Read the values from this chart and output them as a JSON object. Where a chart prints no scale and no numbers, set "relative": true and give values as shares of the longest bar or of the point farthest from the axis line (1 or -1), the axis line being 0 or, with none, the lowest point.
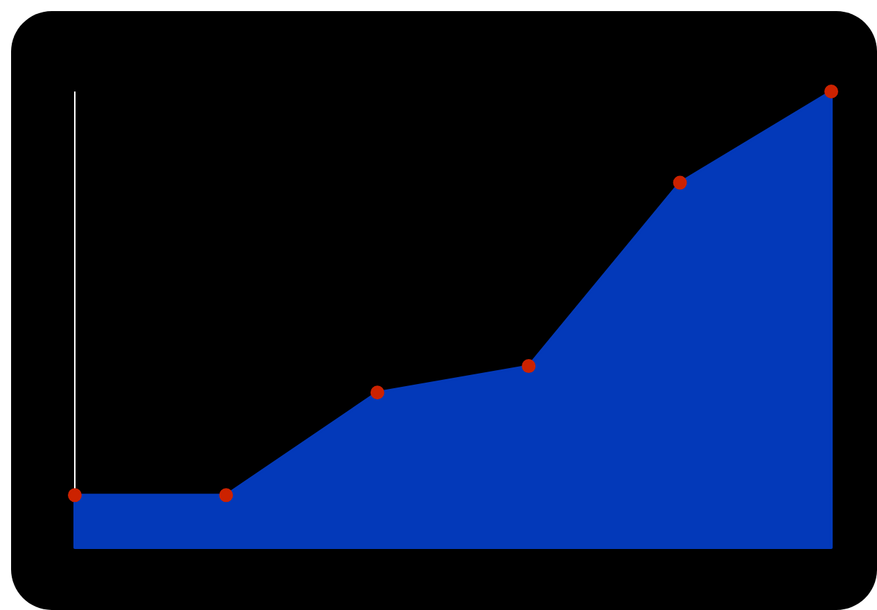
{
  "chart_data": {
    "type": "area",
    "relative": true,
    "categories": [
      null,
      null,
      null,
      null,
      null,
      null
    ],
    "series": [
      {
        "color": "#0339b9",
        "values": [
          0.115,
          0.115,
          0.34,
          0.398,
          0.8,
          1
        ]
      }
    ],
    "marker": "circle"
  }
}
